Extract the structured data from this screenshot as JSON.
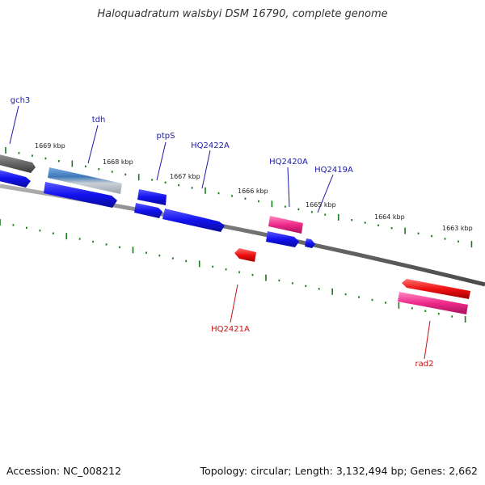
{
  "title": "Haloquadratum walsbyi DSM 16790, complete genome",
  "footer": {
    "accession": "Accession: NC_008212",
    "summary": "Topology: circular; Length: 3,132,494 bp; Genes: 2,662"
  },
  "scale_labels": [
    "1669 kbp",
    "1668 kbp",
    "1667 kbp",
    "1666 kbp",
    "1665 kbp",
    "1664 kbp",
    "1663 kbp"
  ],
  "gene_labels": [
    {
      "name": "gch3",
      "strand": "forward"
    },
    {
      "name": "tdh",
      "strand": "forward"
    },
    {
      "name": "ptpS",
      "strand": "forward"
    },
    {
      "name": "HQ2422A",
      "strand": "forward"
    },
    {
      "name": "HQ2420A",
      "strand": "forward"
    },
    {
      "name": "HQ2419A",
      "strand": "forward"
    },
    {
      "name": "HQ2421A",
      "strand": "reverse"
    },
    {
      "name": "rad2",
      "strand": "reverse"
    }
  ],
  "colors": {
    "forward_label": "#1a1aa8",
    "reverse_label": "#cc1111",
    "cds_blue": "#1010ee",
    "pink": "#ee2a8a",
    "red": "#ee1111",
    "tick_green": "#1a7a1a",
    "backbone": "#6e6e6e"
  }
}
